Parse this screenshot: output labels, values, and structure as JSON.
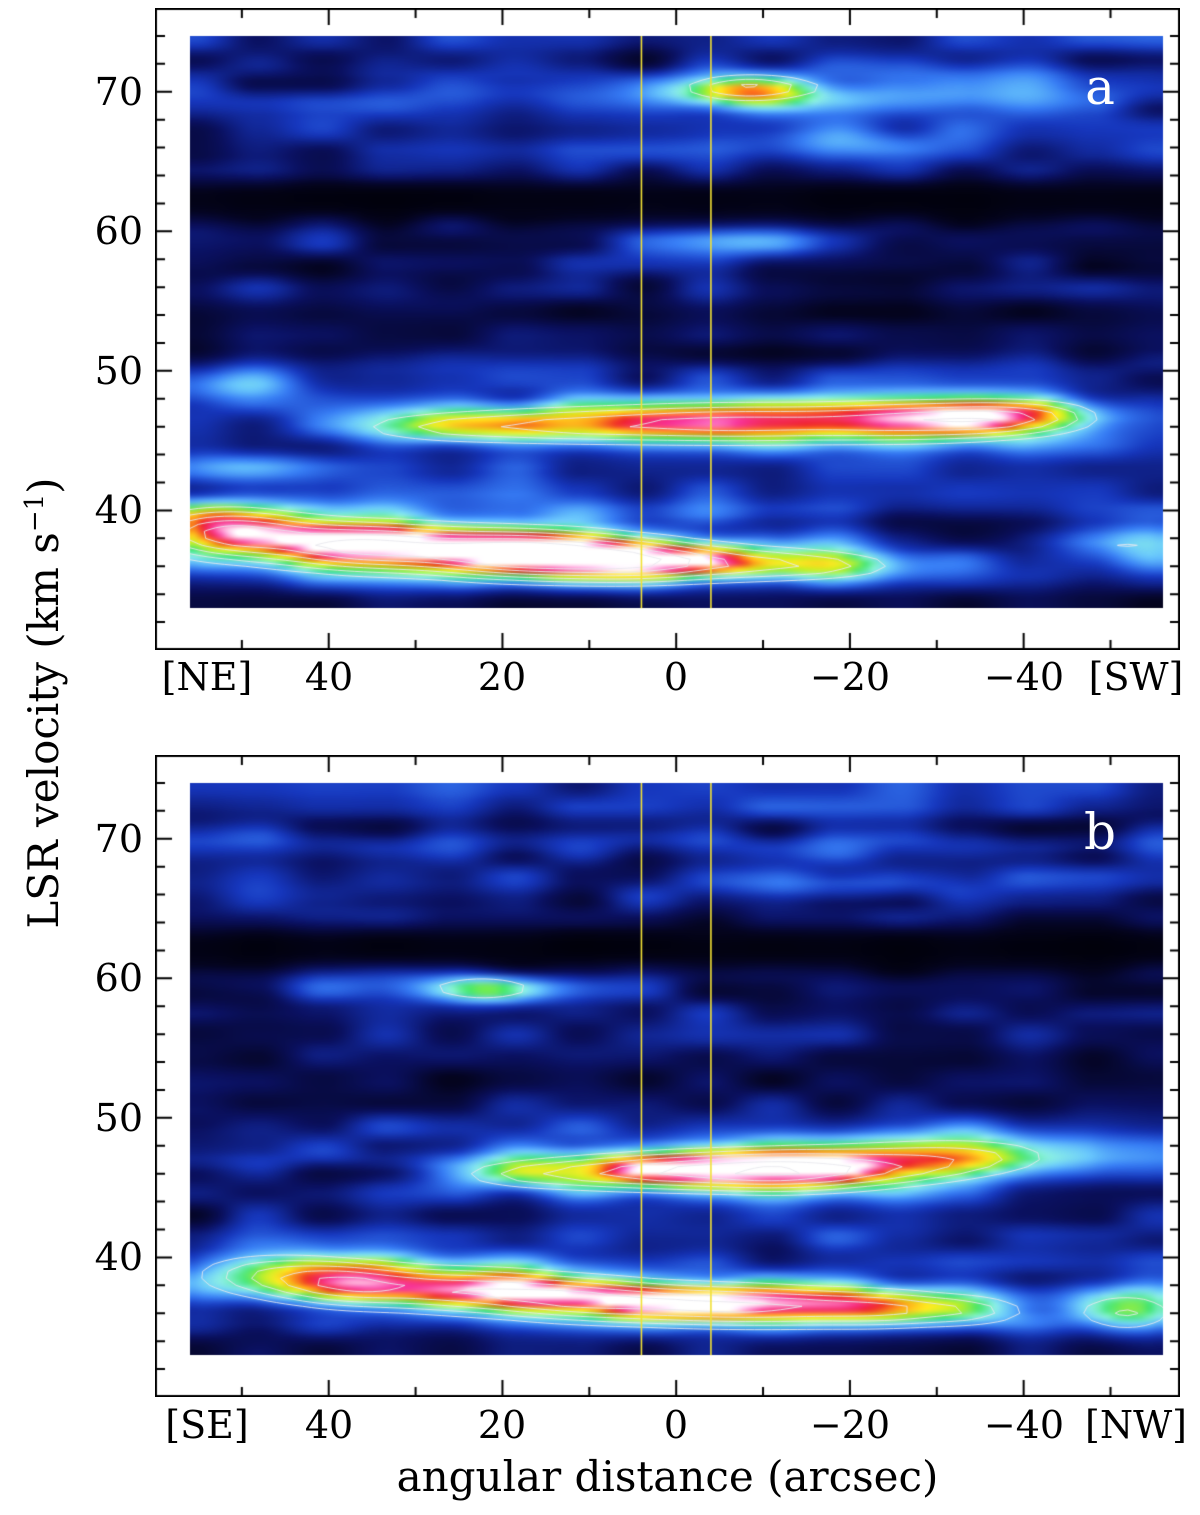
{
  "figure": {
    "x_axis_title": "angular distance (arcsec)",
    "y_axis_title_prefix": "LSR velocity (km s",
    "y_axis_title_sup": "−1",
    "y_axis_title_suffix": ")"
  },
  "chart_data": [
    {
      "type": "heatmap",
      "panel_label": "a",
      "x_tick_labels": [
        "[NE]",
        "40",
        "20",
        "0",
        "−20",
        "−40",
        "[SW]"
      ],
      "y_tick_labels": [
        "70",
        "60",
        "50",
        "40"
      ],
      "x_ticks": [
        40,
        20,
        0,
        -20,
        -40
      ],
      "y_ticks": [
        70,
        60,
        50,
        40
      ],
      "x_axis_range": [
        60,
        -58
      ],
      "y_axis_range": [
        30,
        76
      ],
      "data_x_range": [
        56,
        -56
      ],
      "data_v_range": [
        33,
        74
      ],
      "marker_lines_x": [
        4,
        -4
      ],
      "noise_seed": 3,
      "features": [
        [
          -8,
          46.2,
          13,
          1.05,
          0.52
        ],
        [
          -28,
          46.4,
          8,
          1.1,
          0.4
        ],
        [
          -38,
          46.6,
          6,
          1.0,
          0.38
        ],
        [
          -45,
          46.8,
          5,
          1.0,
          0.18
        ],
        [
          15,
          46.0,
          10,
          1.0,
          0.3
        ],
        [
          30,
          45.9,
          8,
          0.95,
          0.22
        ],
        [
          -5,
          46.2,
          30,
          1.5,
          0.18
        ],
        [
          52,
          38.4,
          7,
          1.3,
          0.72
        ],
        [
          36,
          37.4,
          8,
          1.25,
          0.72
        ],
        [
          18,
          36.8,
          8,
          1.2,
          0.82
        ],
        [
          5,
          36.3,
          7,
          1.1,
          0.55
        ],
        [
          -8,
          36.1,
          8,
          1.0,
          0.38
        ],
        [
          -20,
          36.0,
          7,
          0.9,
          0.25
        ],
        [
          20,
          37.2,
          26,
          1.9,
          0.2
        ],
        [
          -8,
          70.3,
          5.5,
          0.75,
          0.42
        ],
        [
          -12,
          70.2,
          12,
          1.0,
          0.14
        ],
        [
          -52,
          37.5,
          7,
          1.1,
          0.3
        ],
        [
          -8,
          59.3,
          9,
          0.8,
          0.2
        ],
        [
          -20,
          66.8,
          9,
          0.9,
          0.16
        ],
        [
          -35,
          70.9,
          13,
          1.2,
          0.13
        ],
        [
          52,
          48.8,
          7,
          0.9,
          0.22
        ],
        [
          50,
          43.0,
          6,
          0.8,
          0.16
        ]
      ],
      "dark_bands": [
        [
          62.4,
          1.4,
          0.85
        ],
        [
          53.5,
          1.9,
          0.45
        ],
        [
          33.2,
          0.9,
          0.45
        ]
      ]
    },
    {
      "type": "heatmap",
      "panel_label": "b",
      "x_tick_labels": [
        "[SE]",
        "40",
        "20",
        "0",
        "−20",
        "−40",
        "[NW]"
      ],
      "y_tick_labels": [
        "70",
        "60",
        "50",
        "40"
      ],
      "x_ticks": [
        40,
        20,
        0,
        -20,
        -40
      ],
      "y_ticks": [
        70,
        60,
        50,
        40
      ],
      "x_axis_range": [
        60,
        -58
      ],
      "y_axis_range": [
        30,
        76
      ],
      "data_x_range": [
        56,
        -56
      ],
      "data_v_range": [
        33,
        74
      ],
      "marker_lines_x": [
        4,
        -4
      ],
      "noise_seed": 11,
      "features": [
        [
          -3,
          46.2,
          9,
          1.05,
          0.5
        ],
        [
          -14,
          46.1,
          7,
          1.1,
          0.42
        ],
        [
          10,
          46.0,
          8,
          0.95,
          0.3
        ],
        [
          20,
          45.9,
          6,
          0.85,
          0.2
        ],
        [
          -25,
          46.3,
          7,
          1.0,
          0.3
        ],
        [
          -36,
          47.0,
          8,
          1.1,
          0.24
        ],
        [
          -8,
          46.2,
          22,
          1.5,
          0.16
        ],
        [
          48,
          38.8,
          7,
          1.3,
          0.42
        ],
        [
          38,
          38.1,
          6,
          1.2,
          0.5
        ],
        [
          25,
          37.7,
          8,
          1.2,
          0.55
        ],
        [
          12,
          37.0,
          7,
          1.1,
          0.45
        ],
        [
          0,
          36.5,
          8,
          1.05,
          0.44
        ],
        [
          -13,
          36.3,
          8,
          1.0,
          0.48
        ],
        [
          -25,
          36.2,
          6,
          0.95,
          0.4
        ],
        [
          -35,
          36.1,
          5,
          0.9,
          0.3
        ],
        [
          -52,
          36.0,
          5,
          1.2,
          0.4
        ],
        [
          0,
          37.2,
          30,
          1.9,
          0.18
        ],
        [
          22,
          59.2,
          5,
          0.75,
          0.34
        ],
        [
          30,
          59.6,
          16,
          0.9,
          0.12
        ],
        [
          -18,
          66.9,
          10,
          0.85,
          0.15
        ],
        [
          -30,
          48.0,
          12,
          1.0,
          0.16
        ]
      ],
      "dark_bands": [
        [
          62.3,
          1.4,
          0.85
        ],
        [
          53.0,
          2.0,
          0.4
        ],
        [
          33.2,
          0.9,
          0.4
        ]
      ]
    }
  ],
  "style": {
    "marker_line_color": "#f2e135",
    "contour_color": "rgba(232,232,238,0.88)",
    "contour_levels": [
      0.3,
      0.42,
      0.54,
      0.66,
      0.78,
      0.9
    ],
    "noise": {
      "base": 0.06,
      "amp2d": 0.2,
      "amp_row": 0.12
    },
    "ticks": {
      "x_minor_step": 10,
      "x_major_step": 20,
      "y_minor_step": 2,
      "y_major_step": 10
    },
    "colormap": [
      [
        0.0,
        0,
        0,
        6
      ],
      [
        0.07,
        4,
        4,
        32
      ],
      [
        0.16,
        10,
        16,
        95
      ],
      [
        0.27,
        22,
        55,
        190
      ],
      [
        0.37,
        55,
        125,
        245
      ],
      [
        0.46,
        105,
        200,
        252
      ],
      [
        0.53,
        140,
        240,
        228
      ],
      [
        0.6,
        70,
        230,
        120
      ],
      [
        0.675,
        185,
        240,
        45
      ],
      [
        0.74,
        252,
        235,
        35
      ],
      [
        0.8,
        252,
        160,
        25
      ],
      [
        0.86,
        240,
        45,
        40
      ],
      [
        0.92,
        248,
        55,
        145
      ],
      [
        0.96,
        255,
        155,
        210
      ],
      [
        1.0,
        255,
        255,
        255
      ]
    ]
  }
}
